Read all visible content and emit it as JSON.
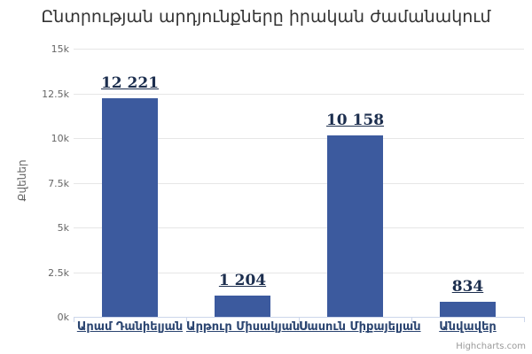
{
  "credit": "Highcharts.com",
  "colors": {
    "background": "#ffffff",
    "bar": "#3c5a9e",
    "title_text": "#333333",
    "axis_label": "#666666",
    "grid_line": "#e6e6e6",
    "axis_line": "#ccd6eb",
    "data_label": "#1c2e4e",
    "category_label": "#2a4470",
    "credit_text": "#999999"
  },
  "chart_data": {
    "type": "bar",
    "title": "Ընտրության արդյունքները իրական ժամանակում",
    "categories": [
      "Արամ Դանիելյան",
      "Արթուր Միսակյան",
      "Սասուն Միքայելյան",
      "Անվավեր"
    ],
    "values": [
      12221,
      1204,
      10158,
      834
    ],
    "value_labels": [
      "12 221",
      "1 204",
      "10 158",
      "834"
    ],
    "xlabel": "",
    "ylabel": "Քվեներ",
    "ylim": [
      0,
      15000
    ],
    "yticks": [
      0,
      2500,
      5000,
      7500,
      10000,
      12500,
      15000
    ],
    "ytick_labels": [
      "0k",
      "2.5k",
      "5k",
      "7.5k",
      "10k",
      "12.5k",
      "15k"
    ],
    "grid": true,
    "legend": false
  }
}
